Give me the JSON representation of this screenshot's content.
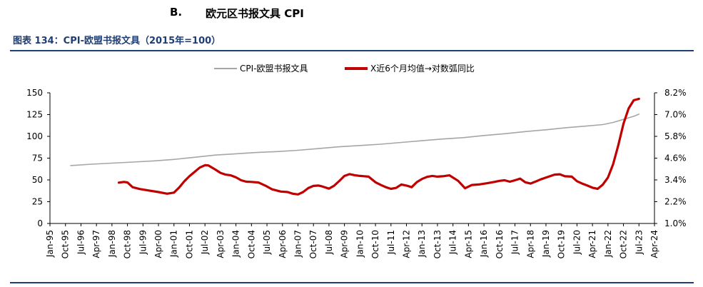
{
  "section": {
    "letter": "B.",
    "title": "欧元区书报文具 CPI"
  },
  "figure_caption": "图表 134：CPI-欧盟书报文具（2015年=100）",
  "chart_data": {
    "type": "line",
    "title": "",
    "legend_position": "top",
    "grid": false,
    "x_tick_labels": [
      "Jan-95",
      "Oct-95",
      "Jul-96",
      "Apr-97",
      "Jan-98",
      "Oct-98",
      "Jul-99",
      "Apr-00",
      "Jan-01",
      "Oct-01",
      "Jul-02",
      "Apr-03",
      "Jan-04",
      "Oct-04",
      "Jul-05",
      "Apr-06",
      "Jan-07",
      "Oct-07",
      "Jul-08",
      "Apr-09",
      "Jan-10",
      "Oct-10",
      "Jul-11",
      "Apr-12",
      "Jan-13",
      "Oct-13",
      "Jul-14",
      "Apr-15",
      "Jan-16",
      "Oct-16",
      "Jul-17",
      "Apr-18",
      "Jan-19",
      "Oct-19",
      "Jul-20",
      "Apr-21",
      "Jan-22",
      "Oct-22",
      "Jul-23",
      "Apr-24"
    ],
    "x_range": [
      "1995-01",
      "2024-04"
    ],
    "left_axis": {
      "ylim": [
        0,
        150
      ],
      "tick_labels": [
        "0",
        "25",
        "50",
        "75",
        "100",
        "125",
        "150"
      ]
    },
    "right_axis": {
      "ylim": [
        1.0,
        8.2
      ],
      "tick_labels": [
        "1.0%",
        "2.2%",
        "3.4%",
        "4.6%",
        "5.8%",
        "7.0%",
        "8.2%"
      ]
    },
    "series": [
      {
        "name": "CPI-欧盟书报文具",
        "axis": "left",
        "color": "#a6a6a6",
        "points": [
          [
            "1996-01",
            66.5
          ],
          [
            "1997-01",
            68
          ],
          [
            "1998-01",
            69.3
          ],
          [
            "1999-01",
            70.5
          ],
          [
            "2000-01",
            71.8
          ],
          [
            "2001-01",
            73.5
          ],
          [
            "2002-01",
            76
          ],
          [
            "2003-01",
            78.5
          ],
          [
            "2004-01",
            80
          ],
          [
            "2005-01",
            81.5
          ],
          [
            "2006-01",
            82.5
          ],
          [
            "2007-01",
            84
          ],
          [
            "2008-01",
            86
          ],
          [
            "2009-01",
            88
          ],
          [
            "2010-01",
            89.5
          ],
          [
            "2011-01",
            91
          ],
          [
            "2012-01",
            93
          ],
          [
            "2013-01",
            95
          ],
          [
            "2014-01",
            97
          ],
          [
            "2015-01",
            98.5
          ],
          [
            "2016-01",
            101
          ],
          [
            "2017-01",
            103
          ],
          [
            "2018-01",
            105.5
          ],
          [
            "2019-01",
            107.5
          ],
          [
            "2020-01",
            110
          ],
          [
            "2021-01",
            112
          ],
          [
            "2021-10",
            113.5
          ],
          [
            "2022-04",
            116
          ],
          [
            "2022-10",
            119.5
          ],
          [
            "2023-04",
            123
          ],
          [
            "2023-07",
            125.5
          ]
        ]
      },
      {
        "name": "X近6个月均值→对数弧同比",
        "axis": "right",
        "color": "#c00000",
        "points": [
          [
            "1998-05",
            3.25
          ],
          [
            "1998-08",
            3.29
          ],
          [
            "1998-10",
            3.26
          ],
          [
            "1999-01",
            3.0
          ],
          [
            "1999-05",
            2.9
          ],
          [
            "1999-10",
            2.82
          ],
          [
            "2000-04",
            2.73
          ],
          [
            "2000-09",
            2.64
          ],
          [
            "2001-01",
            2.7
          ],
          [
            "2001-04",
            2.98
          ],
          [
            "2001-07",
            3.32
          ],
          [
            "2001-10",
            3.61
          ],
          [
            "2002-01",
            3.84
          ],
          [
            "2002-04",
            4.08
          ],
          [
            "2002-07",
            4.21
          ],
          [
            "2002-09",
            4.2
          ],
          [
            "2003-01",
            3.97
          ],
          [
            "2003-04",
            3.79
          ],
          [
            "2003-07",
            3.69
          ],
          [
            "2003-10",
            3.65
          ],
          [
            "2004-01",
            3.54
          ],
          [
            "2004-04",
            3.38
          ],
          [
            "2004-07",
            3.3
          ],
          [
            "2004-10",
            3.29
          ],
          [
            "2005-02",
            3.26
          ],
          [
            "2005-06",
            3.09
          ],
          [
            "2005-10",
            2.88
          ],
          [
            "2006-03",
            2.76
          ],
          [
            "2006-07",
            2.73
          ],
          [
            "2006-10",
            2.64
          ],
          [
            "2007-01",
            2.6
          ],
          [
            "2007-04",
            2.73
          ],
          [
            "2007-07",
            2.95
          ],
          [
            "2007-10",
            3.07
          ],
          [
            "2008-01",
            3.09
          ],
          [
            "2008-03",
            3.04
          ],
          [
            "2008-07",
            2.92
          ],
          [
            "2008-10",
            3.08
          ],
          [
            "2009-01",
            3.34
          ],
          [
            "2009-04",
            3.62
          ],
          [
            "2009-07",
            3.72
          ],
          [
            "2009-10",
            3.66
          ],
          [
            "2010-01",
            3.62
          ],
          [
            "2010-06",
            3.58
          ],
          [
            "2010-10",
            3.27
          ],
          [
            "2011-01",
            3.13
          ],
          [
            "2011-04",
            3.0
          ],
          [
            "2011-07",
            2.91
          ],
          [
            "2011-10",
            2.96
          ],
          [
            "2012-01",
            3.15
          ],
          [
            "2012-04",
            3.09
          ],
          [
            "2012-07",
            3.0
          ],
          [
            "2012-10",
            3.28
          ],
          [
            "2013-01",
            3.45
          ],
          [
            "2013-04",
            3.57
          ],
          [
            "2013-07",
            3.62
          ],
          [
            "2013-10",
            3.58
          ],
          [
            "2014-01",
            3.6
          ],
          [
            "2014-05",
            3.65
          ],
          [
            "2014-10",
            3.35
          ],
          [
            "2015-02",
            2.94
          ],
          [
            "2015-06",
            3.12
          ],
          [
            "2015-10",
            3.15
          ],
          [
            "2016-03",
            3.22
          ],
          [
            "2016-07",
            3.29
          ],
          [
            "2016-10",
            3.35
          ],
          [
            "2017-01",
            3.38
          ],
          [
            "2017-04",
            3.3
          ],
          [
            "2017-07",
            3.38
          ],
          [
            "2017-10",
            3.47
          ],
          [
            "2018-01",
            3.27
          ],
          [
            "2018-04",
            3.2
          ],
          [
            "2018-07",
            3.31
          ],
          [
            "2018-10",
            3.43
          ],
          [
            "2019-02",
            3.56
          ],
          [
            "2019-06",
            3.69
          ],
          [
            "2019-09",
            3.71
          ],
          [
            "2019-12",
            3.6
          ],
          [
            "2020-04",
            3.58
          ],
          [
            "2020-07",
            3.33
          ],
          [
            "2020-10",
            3.2
          ],
          [
            "2021-01",
            3.09
          ],
          [
            "2021-04",
            2.97
          ],
          [
            "2021-07",
            2.91
          ],
          [
            "2021-10",
            3.14
          ],
          [
            "2022-01",
            3.53
          ],
          [
            "2022-04",
            4.27
          ],
          [
            "2022-07",
            5.31
          ],
          [
            "2022-10",
            6.5
          ],
          [
            "2023-01",
            7.34
          ],
          [
            "2023-04",
            7.79
          ],
          [
            "2023-07",
            7.87
          ]
        ]
      }
    ]
  }
}
